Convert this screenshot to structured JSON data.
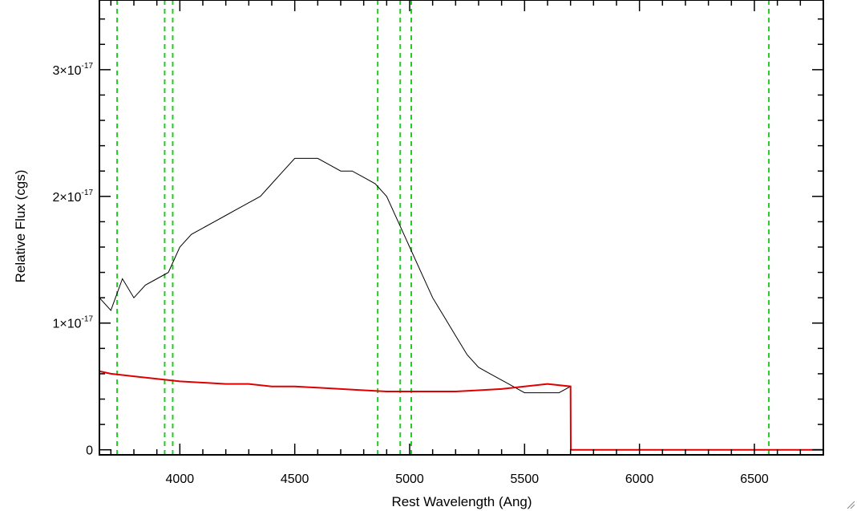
{
  "chart_data": {
    "type": "line",
    "title": "",
    "xlabel": "Rest Wavelength (Ang)",
    "ylabel": "Relative Flux (cgs)",
    "xlim": [
      3650,
      6800
    ],
    "ylim": [
      -4e-19,
      3.55e-17
    ],
    "x_ticks": [
      {
        "value": 4000,
        "label": "4000"
      },
      {
        "value": 4500,
        "label": "4500"
      },
      {
        "value": 5000,
        "label": "5000"
      },
      {
        "value": 5500,
        "label": "5500"
      },
      {
        "value": 6000,
        "label": "6000"
      },
      {
        "value": 6500,
        "label": "6500"
      }
    ],
    "y_ticks": [
      {
        "value": 0,
        "mantissa": "0",
        "exponent": ""
      },
      {
        "value": 1e-17,
        "mantissa": "1×10",
        "exponent": "-17"
      },
      {
        "value": 2e-17,
        "mantissa": "2×10",
        "exponent": "-17"
      },
      {
        "value": 3e-17,
        "mantissa": "3×10",
        "exponent": "-17"
      }
    ],
    "grid": false,
    "colors": {
      "spectrum": "#000000",
      "error": "#e00000",
      "lines": "#22cc22"
    },
    "reference_lines_x": [
      3727,
      3934,
      3969,
      4861,
      4959,
      5007,
      6563
    ],
    "series": [
      {
        "color": "#000000",
        "x": [
          3650,
          3700,
          3750,
          3800,
          3850,
          3900,
          3950,
          4000,
          4050,
          4100,
          4150,
          4200,
          4250,
          4300,
          4350,
          4400,
          4450,
          4500,
          4550,
          4600,
          4650,
          4700,
          4750,
          4800,
          4850,
          4900,
          4950,
          5000,
          5050,
          5100,
          5150,
          5200,
          5250,
          5300,
          5350,
          5400,
          5450,
          5500,
          5550,
          5600,
          5650,
          5700
        ],
        "y": [
          1.2e-17,
          1.1e-17,
          1.35e-17,
          1.2e-17,
          1.3e-17,
          1.35e-17,
          1.4e-17,
          1.6e-17,
          1.7e-17,
          1.75e-17,
          1.8e-17,
          1.85e-17,
          1.9e-17,
          1.95e-17,
          2e-17,
          2.1e-17,
          2.2e-17,
          2.3e-17,
          2.3e-17,
          2.3e-17,
          2.25e-17,
          2.2e-17,
          2.2e-17,
          2.15e-17,
          2.1e-17,
          2e-17,
          1.8e-17,
          1.6e-17,
          1.4e-17,
          1.2e-17,
          1.05e-17,
          9e-18,
          7.5e-18,
          6.5e-18,
          6e-18,
          5.5e-18,
          5e-18,
          4.5e-18,
          4.5e-18,
          4.5e-18,
          4.5e-18,
          5e-18
        ]
      },
      {
        "color": "#e00000",
        "x": [
          3650,
          3700,
          3800,
          3900,
          4000,
          4100,
          4200,
          4300,
          4400,
          4500,
          4600,
          4700,
          4800,
          4900,
          5000,
          5100,
          5200,
          5300,
          5400,
          5500,
          5600,
          5700,
          5701,
          5750,
          6000,
          6500,
          6800
        ],
        "y": [
          6.2e-18,
          6e-18,
          5.8e-18,
          5.6e-18,
          5.4e-18,
          5.3e-18,
          5.2e-18,
          5.2e-18,
          5e-18,
          5e-18,
          4.9e-18,
          4.8e-18,
          4.7e-18,
          4.6e-18,
          4.6e-18,
          4.6e-18,
          4.6e-18,
          4.7e-18,
          4.8e-18,
          5e-18,
          5.2e-18,
          5e-18,
          0,
          0,
          0,
          0,
          0
        ]
      }
    ]
  }
}
